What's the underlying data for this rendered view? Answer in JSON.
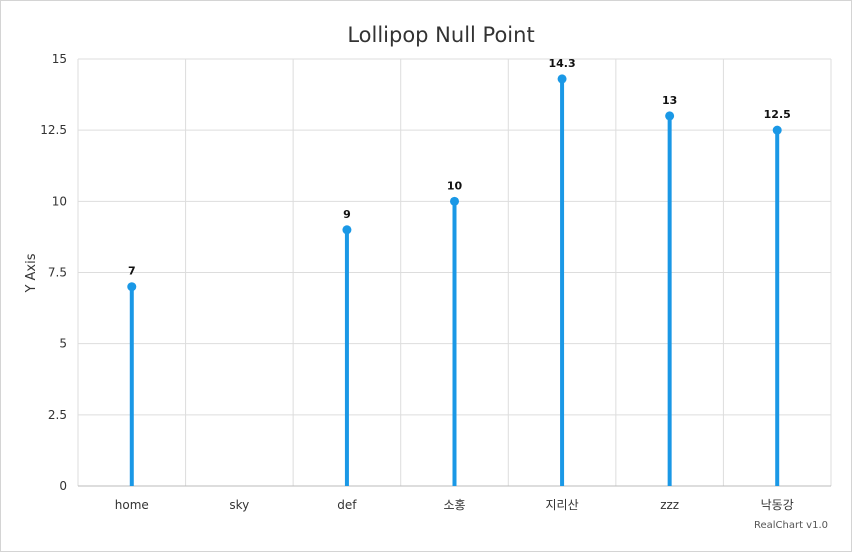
{
  "credit": "RealChart v1.0",
  "colors": {
    "series": "#1a98e6",
    "grid": "#dddddd",
    "axis": "#bbbbbb"
  },
  "chart_data": {
    "type": "lollipop",
    "title": "Lollipop Null Point",
    "xlabel": "",
    "ylabel": "Y Axis",
    "categories": [
      "home",
      "sky",
      "def",
      "소홍",
      "지리산",
      "zzz",
      "낙동강"
    ],
    "values": [
      7,
      null,
      9,
      10,
      14.3,
      13,
      12.5
    ],
    "ylim": [
      0,
      15
    ],
    "yticks": [
      "0",
      "2.5",
      "5",
      "7.5",
      "10",
      "12.5",
      "15"
    ],
    "data_labels": [
      "7",
      "",
      "9",
      "10",
      "14.3",
      "13",
      "12.5"
    ],
    "grid": true,
    "legend": "none"
  }
}
